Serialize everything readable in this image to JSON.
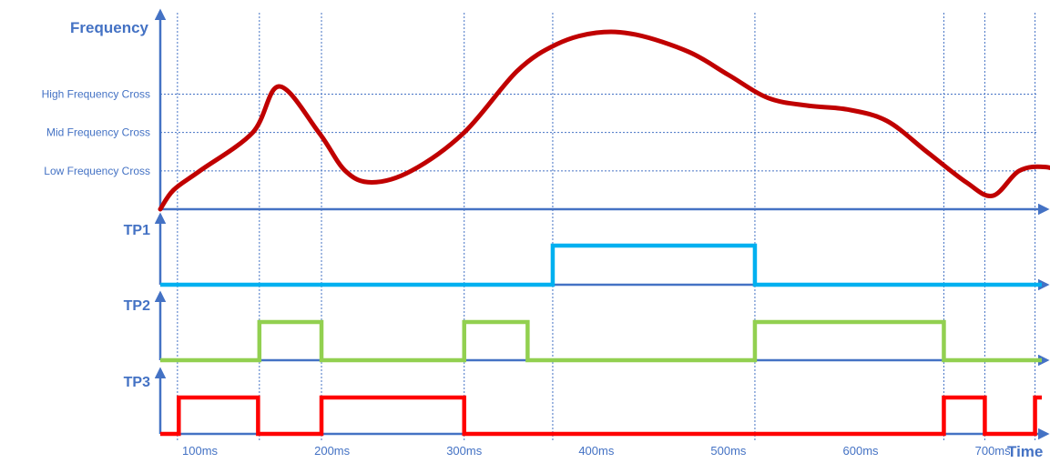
{
  "colors": {
    "axis": "#4472C4",
    "frequency_curve": "#C00000",
    "tp1": "#00B0F0",
    "tp2": "#92D050",
    "tp3": "#FF0000"
  },
  "chart_data": {
    "type": "line",
    "title": "",
    "ylabel": "Frequency",
    "xlabel": "Time",
    "x_ticks": [
      "100ms",
      "200ms",
      "300ms",
      "400ms",
      "500ms",
      "600ms",
      "700ms"
    ],
    "y_levels": [
      {
        "label": "High Frequency Cross",
        "value": 3
      },
      {
        "label": "Mid Frequency Cross",
        "value": 2
      },
      {
        "label": "Low Frequency Cross",
        "value": 1
      }
    ],
    "ylim": [
      0,
      4.6
    ],
    "xlim": [
      70,
      770
    ],
    "grid": true,
    "frequency_curve": {
      "x": [
        70,
        80,
        100,
        140,
        160,
        190,
        210,
        230,
        260,
        300,
        340,
        370,
        400,
        430,
        470,
        500,
        530,
        560,
        590,
        620,
        650,
        680,
        700,
        720,
        740,
        760,
        770
      ],
      "y": [
        0.0,
        0.5,
        1.0,
        2.0,
        3.2,
        2.0,
        1.0,
        0.7,
        1.0,
        2.0,
        3.6,
        4.3,
        4.6,
        4.55,
        4.1,
        3.5,
        2.9,
        2.7,
        2.6,
        2.3,
        1.5,
        0.7,
        0.35,
        1.0,
        1.1,
        0.9,
        0.9
      ]
    },
    "digital_signals": [
      {
        "name": "TP1",
        "initial": 0,
        "transitions": [
          367,
          520
        ]
      },
      {
        "name": "TP2",
        "initial": 0,
        "transitions": [
          145,
          192,
          300,
          348,
          520,
          663
        ]
      },
      {
        "name": "TP3",
        "initial": 0,
        "transitions": [
          84,
          144,
          192,
          300,
          663,
          694,
          732
        ]
      }
    ]
  }
}
